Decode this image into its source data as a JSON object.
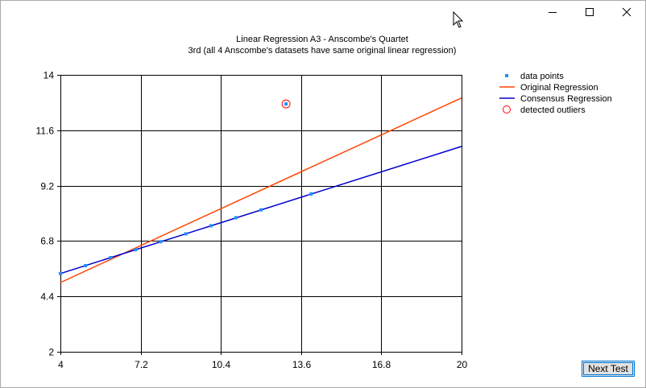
{
  "window": {
    "controls": {
      "minimize_icon": "minimize-icon",
      "maximize_icon": "maximize-icon",
      "close_icon": "close-icon"
    }
  },
  "chart": {
    "title": "Linear Regression A3 - Anscombe's Quartet",
    "subtitle": "3rd (all 4 Anscombe's datasets have same original linear regression)"
  },
  "legend": {
    "items": [
      {
        "label": "data points",
        "color": "#1e90ff",
        "marker": "square"
      },
      {
        "label": "Original Regression",
        "color": "#ff4500",
        "marker": "line"
      },
      {
        "label": "Consensus Regression",
        "color": "#0000cd",
        "marker": "line"
      },
      {
        "label": "detected outliers",
        "color": "#ff0000",
        "marker": "circle"
      }
    ]
  },
  "next_button": {
    "label": "Next Test"
  },
  "chart_data": {
    "type": "scatter",
    "title": "Linear Regression A3 - Anscombe's Quartet",
    "subtitle": "3rd (all 4 Anscombe's datasets have same original linear regression)",
    "xlim": [
      4,
      20
    ],
    "ylim": [
      2,
      14
    ],
    "x_ticks": [
      "4",
      "7.2",
      "10.4",
      "13.6",
      "16.8",
      "20"
    ],
    "y_ticks": [
      "2",
      "4.4",
      "6.8",
      "9.2",
      "11.6",
      "14"
    ],
    "grid": true,
    "legend_position": "right",
    "series": [
      {
        "name": "data points",
        "kind": "points",
        "color": "#1e90ff",
        "x": [
          4,
          5,
          6,
          7,
          8,
          9,
          10,
          11,
          12,
          13,
          14
        ],
        "y": [
          5.39,
          5.73,
          6.08,
          6.42,
          6.77,
          7.11,
          7.46,
          7.81,
          8.15,
          12.74,
          8.84
        ]
      },
      {
        "name": "Original Regression",
        "kind": "line",
        "color": "#ff4500",
        "x": [
          4,
          20
        ],
        "y": [
          5.0,
          13.0
        ]
      },
      {
        "name": "Consensus Regression",
        "kind": "line",
        "color": "#0000cd",
        "x": [
          4,
          20
        ],
        "y": [
          5.39,
          10.9
        ]
      },
      {
        "name": "detected outliers",
        "kind": "circles",
        "color": "#ff0000",
        "x": [
          13
        ],
        "y": [
          12.74
        ]
      }
    ]
  }
}
